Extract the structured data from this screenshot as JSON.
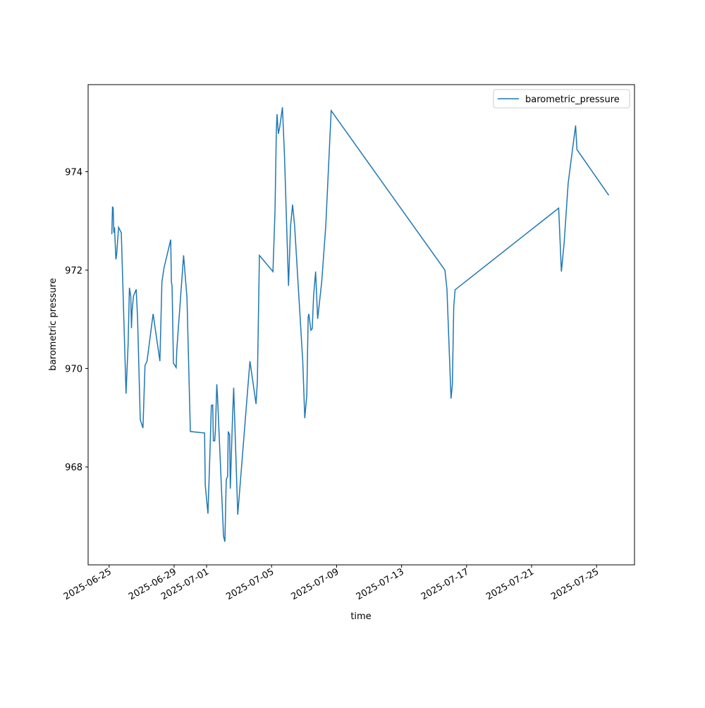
{
  "chart_data": {
    "type": "line",
    "x_label": "time",
    "y_label": "barometric pressure",
    "x": [
      "2025-06-25T04:00",
      "2025-06-25T05:00",
      "2025-06-25T06:00",
      "2025-06-25T07:00",
      "2025-06-25T08:00",
      "2025-06-25T10:00",
      "2025-06-25T11:00",
      "2025-06-25T14:00",
      "2025-06-25T18:00",
      "2025-06-26T01:00",
      "2025-06-26T04:00",
      "2025-06-26T06:00",
      "2025-06-26T08:00",
      "2025-06-26T09:00",
      "2025-06-26T10:00",
      "2025-06-26T12:00",
      "2025-06-26T16:00",
      "2025-06-26T18:00",
      "2025-06-26T22:00",
      "2025-06-27T02:00",
      "2025-06-27T05:00",
      "2025-06-27T08:00",
      "2025-06-27T17:00",
      "2025-06-28T03:00",
      "2025-06-28T06:00",
      "2025-06-28T09:00",
      "2025-06-28T19:00",
      "2025-06-28T20:00",
      "2025-06-28T21:00",
      "2025-06-28T23:00",
      "2025-06-29T03:00",
      "2025-06-29T04:00",
      "2025-06-29T14:00",
      "2025-06-29T19:00",
      "2025-06-30T00:00",
      "2025-06-30T21:00",
      "2025-06-30T22:00",
      "2025-07-01T02:00",
      "2025-07-01T05:00",
      "2025-07-01T07:00",
      "2025-07-01T09:00",
      "2025-07-01T10:00",
      "2025-07-01T12:00",
      "2025-07-01T13:00",
      "2025-07-01T15:00",
      "2025-07-01T16:00",
      "2025-07-02T01:00",
      "2025-07-02T03:00",
      "2025-07-02T05:00",
      "2025-07-02T07:00",
      "2025-07-02T08:00",
      "2025-07-02T10:00",
      "2025-07-02T11:00",
      "2025-07-02T14:00",
      "2025-07-02T16:00",
      "2025-07-02T22:00",
      "2025-07-03T16:00",
      "2025-07-04T01:00",
      "2025-07-04T03:00",
      "2025-07-04T06:00",
      "2025-07-05T02:00",
      "2025-07-05T05:00",
      "2025-07-05T07:00",
      "2025-07-05T08:00",
      "2025-07-05T10:00",
      "2025-07-05T12:00",
      "2025-07-05T16:00",
      "2025-07-05T19:00",
      "2025-07-06T01:00",
      "2025-07-06T04:00",
      "2025-07-06T07:00",
      "2025-07-06T10:00",
      "2025-07-06T22:00",
      "2025-07-07T01:00",
      "2025-07-07T04:00",
      "2025-07-07T06:00",
      "2025-07-07T07:00",
      "2025-07-07T10:00",
      "2025-07-07T12:00",
      "2025-07-07T14:00",
      "2025-07-07T17:00",
      "2025-07-07T20:00",
      "2025-07-08T02:00",
      "2025-07-08T08:00",
      "2025-07-08T16:00",
      "2025-07-15T16:00",
      "2025-07-15T19:00",
      "2025-07-16T01:00",
      "2025-07-16T03:00",
      "2025-07-16T05:00",
      "2025-07-16T07:00",
      "2025-07-22T16:00",
      "2025-07-22T20:00",
      "2025-07-23T00:00",
      "2025-07-23T06:00",
      "2025-07-23T08:00",
      "2025-07-23T17:00",
      "2025-07-23T19:00",
      "2025-07-25T18:00"
    ],
    "series": [
      {
        "name": "barometric_pressure",
        "color": "#1f77b4",
        "values": [
          972.73,
          973.29,
          973.26,
          972.76,
          972.87,
          972.22,
          972.3,
          972.87,
          972.76,
          969.49,
          970.47,
          971.64,
          971.47,
          970.82,
          971.18,
          971.47,
          971.61,
          971.04,
          968.96,
          968.79,
          970.06,
          970.15,
          971.11,
          970.15,
          971.76,
          972.04,
          972.62,
          971.76,
          971.68,
          970.11,
          970.02,
          970.39,
          972.3,
          971.44,
          968.72,
          968.69,
          967.63,
          967.05,
          968.32,
          969.25,
          969.26,
          968.53,
          968.53,
          968.75,
          969.68,
          969.46,
          966.59,
          966.48,
          967.74,
          967.81,
          968.72,
          968.65,
          967.56,
          968.89,
          969.61,
          967.03,
          970.15,
          969.28,
          969.75,
          972.3,
          971.97,
          973.19,
          974.84,
          975.17,
          974.77,
          974.91,
          975.31,
          974.34,
          971.68,
          972.9,
          973.33,
          972.9,
          970.15,
          968.99,
          969.46,
          971.04,
          971.11,
          970.78,
          970.81,
          971.47,
          971.97,
          971.01,
          971.76,
          972.9,
          975.24,
          972.0,
          971.61,
          969.39,
          969.68,
          971.25,
          971.6,
          973.26,
          971.97,
          972.54,
          973.76,
          973.98,
          974.94,
          974.45,
          973.52
        ]
      }
    ],
    "xlim": [
      "2025-06-23T17:00",
      "2025-07-27T08:00"
    ],
    "xticks": [
      "2025-06-25",
      "2025-06-29",
      "2025-07-01",
      "2025-07-05",
      "2025-07-09",
      "2025-07-13",
      "2025-07-17",
      "2025-07-21",
      "2025-07-25"
    ],
    "ylim": [
      966.01,
      975.77
    ],
    "yticks": [
      968,
      970,
      972,
      974
    ],
    "legend": "upper right"
  }
}
